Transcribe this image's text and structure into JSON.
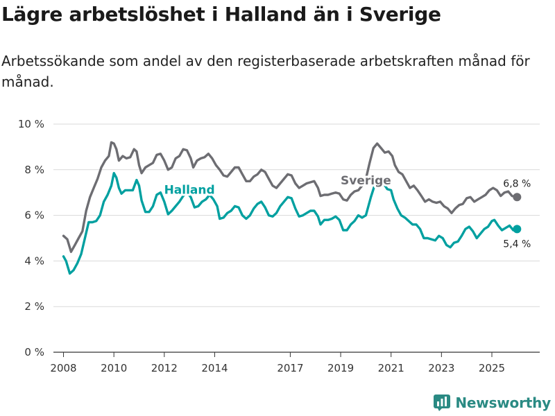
{
  "header": {
    "title": "Lägre arbetslöshet i Halland än i Sverige",
    "subtitle": "Arbetssökande som andel av den registerbaserade arbetskraften månad för månad."
  },
  "branding": {
    "name": "Newsworthy",
    "icon": "newsworthy-logo-icon",
    "color": "#2a8a83"
  },
  "chart_data": {
    "type": "line",
    "title": "Lägre arbetslöshet i Halland än i Sverige",
    "xlabel": "",
    "ylabel": "",
    "xlim": [
      2007.6,
      2026.9
    ],
    "ylim": [
      0,
      10
    ],
    "grid": true,
    "x_ticks": [
      2008,
      2010,
      2012,
      2014,
      2017,
      2019,
      2021,
      2023,
      2025
    ],
    "y_ticks": [
      {
        "value": 0,
        "label": "0 %"
      },
      {
        "value": 2,
        "label": "2 %"
      },
      {
        "value": 4,
        "label": "4 %"
      },
      {
        "value": 6,
        "label": "6 %"
      },
      {
        "value": 8,
        "label": "8 %"
      },
      {
        "value": 10,
        "label": "10 %"
      }
    ],
    "series": [
      {
        "name": "Sverige",
        "color": "#6d6d72",
        "label_at": [
          2020.0,
          7.35
        ],
        "end_label": "6,8 %",
        "points": [
          [
            2008.0,
            5.1
          ],
          [
            2008.15,
            4.95
          ],
          [
            2008.3,
            4.4
          ],
          [
            2008.45,
            4.7
          ],
          [
            2008.6,
            5.0
          ],
          [
            2008.75,
            5.3
          ],
          [
            2008.9,
            6.2
          ],
          [
            2009.05,
            6.8
          ],
          [
            2009.2,
            7.2
          ],
          [
            2009.35,
            7.6
          ],
          [
            2009.5,
            8.1
          ],
          [
            2009.65,
            8.4
          ],
          [
            2009.8,
            8.6
          ],
          [
            2009.9,
            9.2
          ],
          [
            2010.0,
            9.15
          ],
          [
            2010.1,
            8.9
          ],
          [
            2010.2,
            8.4
          ],
          [
            2010.35,
            8.6
          ],
          [
            2010.5,
            8.5
          ],
          [
            2010.65,
            8.55
          ],
          [
            2010.8,
            8.9
          ],
          [
            2010.9,
            8.8
          ],
          [
            2011.0,
            8.2
          ],
          [
            2011.1,
            7.85
          ],
          [
            2011.25,
            8.1
          ],
          [
            2011.4,
            8.2
          ],
          [
            2011.55,
            8.3
          ],
          [
            2011.7,
            8.65
          ],
          [
            2011.85,
            8.7
          ],
          [
            2012.0,
            8.4
          ],
          [
            2012.15,
            8.0
          ],
          [
            2012.3,
            8.1
          ],
          [
            2012.45,
            8.5
          ],
          [
            2012.6,
            8.6
          ],
          [
            2012.75,
            8.9
          ],
          [
            2012.9,
            8.85
          ],
          [
            2013.05,
            8.5
          ],
          [
            2013.15,
            8.1
          ],
          [
            2013.3,
            8.4
          ],
          [
            2013.45,
            8.5
          ],
          [
            2013.6,
            8.55
          ],
          [
            2013.75,
            8.7
          ],
          [
            2013.9,
            8.5
          ],
          [
            2014.05,
            8.2
          ],
          [
            2014.2,
            8.0
          ],
          [
            2014.35,
            7.75
          ],
          [
            2014.5,
            7.7
          ],
          [
            2014.65,
            7.9
          ],
          [
            2014.8,
            8.1
          ],
          [
            2014.95,
            8.1
          ],
          [
            2015.1,
            7.8
          ],
          [
            2015.25,
            7.5
          ],
          [
            2015.4,
            7.5
          ],
          [
            2015.55,
            7.7
          ],
          [
            2015.7,
            7.8
          ],
          [
            2015.85,
            8.0
          ],
          [
            2016.0,
            7.9
          ],
          [
            2016.15,
            7.6
          ],
          [
            2016.3,
            7.3
          ],
          [
            2016.45,
            7.2
          ],
          [
            2016.6,
            7.4
          ],
          [
            2016.75,
            7.6
          ],
          [
            2016.9,
            7.8
          ],
          [
            2017.05,
            7.75
          ],
          [
            2017.2,
            7.4
          ],
          [
            2017.35,
            7.2
          ],
          [
            2017.5,
            7.3
          ],
          [
            2017.65,
            7.4
          ],
          [
            2017.8,
            7.45
          ],
          [
            2017.95,
            7.5
          ],
          [
            2018.1,
            7.2
          ],
          [
            2018.2,
            6.85
          ],
          [
            2018.35,
            6.9
          ],
          [
            2018.5,
            6.9
          ],
          [
            2018.65,
            6.95
          ],
          [
            2018.8,
            7.0
          ],
          [
            2018.95,
            6.95
          ],
          [
            2019.1,
            6.7
          ],
          [
            2019.25,
            6.65
          ],
          [
            2019.4,
            6.9
          ],
          [
            2019.55,
            7.05
          ],
          [
            2019.7,
            7.1
          ],
          [
            2019.85,
            7.3
          ],
          [
            2020.0,
            7.6
          ],
          [
            2020.15,
            8.3
          ],
          [
            2020.3,
            8.95
          ],
          [
            2020.45,
            9.15
          ],
          [
            2020.6,
            8.95
          ],
          [
            2020.75,
            8.75
          ],
          [
            2020.9,
            8.8
          ],
          [
            2021.05,
            8.6
          ],
          [
            2021.15,
            8.2
          ],
          [
            2021.3,
            7.9
          ],
          [
            2021.45,
            7.8
          ],
          [
            2021.6,
            7.5
          ],
          [
            2021.75,
            7.2
          ],
          [
            2021.9,
            7.3
          ],
          [
            2022.05,
            7.1
          ],
          [
            2022.2,
            6.85
          ],
          [
            2022.35,
            6.6
          ],
          [
            2022.5,
            6.7
          ],
          [
            2022.65,
            6.6
          ],
          [
            2022.8,
            6.55
          ],
          [
            2022.95,
            6.6
          ],
          [
            2023.1,
            6.4
          ],
          [
            2023.25,
            6.3
          ],
          [
            2023.4,
            6.1
          ],
          [
            2023.55,
            6.3
          ],
          [
            2023.7,
            6.45
          ],
          [
            2023.85,
            6.5
          ],
          [
            2024.0,
            6.75
          ],
          [
            2024.15,
            6.8
          ],
          [
            2024.3,
            6.6
          ],
          [
            2024.45,
            6.7
          ],
          [
            2024.6,
            6.8
          ],
          [
            2024.75,
            6.9
          ],
          [
            2024.9,
            7.1
          ],
          [
            2025.05,
            7.2
          ],
          [
            2025.2,
            7.1
          ],
          [
            2025.35,
            6.85
          ],
          [
            2025.5,
            7.0
          ],
          [
            2025.65,
            7.05
          ],
          [
            2025.8,
            6.85
          ],
          [
            2026.0,
            6.8
          ]
        ]
      },
      {
        "name": "Halland",
        "color": "#00a0a0",
        "label_at": [
          2013.0,
          6.95
        ],
        "end_label": "5,4 %",
        "points": [
          [
            2008.0,
            4.2
          ],
          [
            2008.1,
            4.0
          ],
          [
            2008.25,
            3.45
          ],
          [
            2008.4,
            3.6
          ],
          [
            2008.55,
            3.9
          ],
          [
            2008.7,
            4.3
          ],
          [
            2008.85,
            5.0
          ],
          [
            2009.0,
            5.7
          ],
          [
            2009.15,
            5.7
          ],
          [
            2009.3,
            5.75
          ],
          [
            2009.45,
            6.0
          ],
          [
            2009.6,
            6.6
          ],
          [
            2009.75,
            6.9
          ],
          [
            2009.9,
            7.3
          ],
          [
            2010.0,
            7.85
          ],
          [
            2010.1,
            7.65
          ],
          [
            2010.2,
            7.2
          ],
          [
            2010.3,
            6.95
          ],
          [
            2010.45,
            7.1
          ],
          [
            2010.6,
            7.1
          ],
          [
            2010.75,
            7.1
          ],
          [
            2010.9,
            7.55
          ],
          [
            2011.0,
            7.3
          ],
          [
            2011.1,
            6.65
          ],
          [
            2011.25,
            6.15
          ],
          [
            2011.4,
            6.15
          ],
          [
            2011.55,
            6.4
          ],
          [
            2011.7,
            6.9
          ],
          [
            2011.85,
            7.0
          ],
          [
            2012.0,
            6.6
          ],
          [
            2012.15,
            6.05
          ],
          [
            2012.3,
            6.2
          ],
          [
            2012.45,
            6.4
          ],
          [
            2012.6,
            6.6
          ],
          [
            2012.75,
            6.85
          ],
          [
            2012.9,
            7.0
          ],
          [
            2013.05,
            6.8
          ],
          [
            2013.2,
            6.35
          ],
          [
            2013.35,
            6.4
          ],
          [
            2013.5,
            6.6
          ],
          [
            2013.65,
            6.7
          ],
          [
            2013.8,
            6.9
          ],
          [
            2013.95,
            6.7
          ],
          [
            2014.1,
            6.4
          ],
          [
            2014.2,
            5.85
          ],
          [
            2014.35,
            5.9
          ],
          [
            2014.5,
            6.1
          ],
          [
            2014.65,
            6.2
          ],
          [
            2014.8,
            6.4
          ],
          [
            2014.95,
            6.35
          ],
          [
            2015.1,
            6.0
          ],
          [
            2015.25,
            5.85
          ],
          [
            2015.4,
            6.0
          ],
          [
            2015.55,
            6.3
          ],
          [
            2015.7,
            6.5
          ],
          [
            2015.85,
            6.6
          ],
          [
            2016.0,
            6.35
          ],
          [
            2016.15,
            6.0
          ],
          [
            2016.3,
            5.95
          ],
          [
            2016.45,
            6.1
          ],
          [
            2016.6,
            6.4
          ],
          [
            2016.75,
            6.6
          ],
          [
            2016.9,
            6.8
          ],
          [
            2017.05,
            6.75
          ],
          [
            2017.2,
            6.3
          ],
          [
            2017.35,
            5.95
          ],
          [
            2017.5,
            6.0
          ],
          [
            2017.65,
            6.1
          ],
          [
            2017.8,
            6.2
          ],
          [
            2017.95,
            6.2
          ],
          [
            2018.1,
            5.95
          ],
          [
            2018.2,
            5.6
          ],
          [
            2018.35,
            5.8
          ],
          [
            2018.5,
            5.8
          ],
          [
            2018.65,
            5.85
          ],
          [
            2018.8,
            5.95
          ],
          [
            2018.95,
            5.8
          ],
          [
            2019.1,
            5.35
          ],
          [
            2019.25,
            5.35
          ],
          [
            2019.4,
            5.6
          ],
          [
            2019.55,
            5.75
          ],
          [
            2019.7,
            6.0
          ],
          [
            2019.85,
            5.9
          ],
          [
            2020.0,
            6.0
          ],
          [
            2020.2,
            6.8
          ],
          [
            2020.4,
            7.5
          ],
          [
            2020.55,
            7.6
          ],
          [
            2020.7,
            7.4
          ],
          [
            2020.85,
            7.15
          ],
          [
            2021.0,
            7.1
          ],
          [
            2021.1,
            6.7
          ],
          [
            2021.25,
            6.3
          ],
          [
            2021.4,
            6.0
          ],
          [
            2021.55,
            5.9
          ],
          [
            2021.7,
            5.75
          ],
          [
            2021.85,
            5.6
          ],
          [
            2022.0,
            5.6
          ],
          [
            2022.15,
            5.4
          ],
          [
            2022.3,
            5.0
          ],
          [
            2022.45,
            5.0
          ],
          [
            2022.6,
            4.95
          ],
          [
            2022.75,
            4.9
          ],
          [
            2022.9,
            5.1
          ],
          [
            2023.05,
            5.0
          ],
          [
            2023.2,
            4.7
          ],
          [
            2023.35,
            4.6
          ],
          [
            2023.5,
            4.8
          ],
          [
            2023.65,
            4.85
          ],
          [
            2023.8,
            5.1
          ],
          [
            2023.95,
            5.4
          ],
          [
            2024.1,
            5.5
          ],
          [
            2024.25,
            5.3
          ],
          [
            2024.4,
            5.0
          ],
          [
            2024.55,
            5.2
          ],
          [
            2024.7,
            5.4
          ],
          [
            2024.85,
            5.5
          ],
          [
            2025.0,
            5.75
          ],
          [
            2025.1,
            5.8
          ],
          [
            2025.25,
            5.55
          ],
          [
            2025.4,
            5.35
          ],
          [
            2025.55,
            5.45
          ],
          [
            2025.7,
            5.55
          ],
          [
            2025.85,
            5.35
          ],
          [
            2026.0,
            5.4
          ]
        ]
      }
    ]
  }
}
